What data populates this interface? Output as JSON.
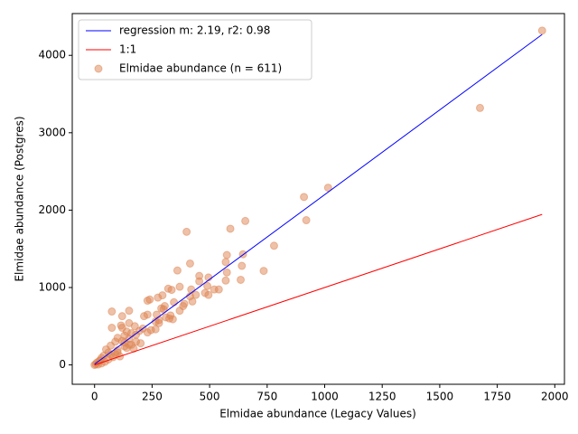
{
  "chart_data": {
    "type": "scatter",
    "xlabel": "Elmidae abundance (Legacy Values)",
    "ylabel": "Elmidae abundance (Postgres)",
    "xlim": [
      -97,
      2042
    ],
    "ylim": [
      -250,
      4540
    ],
    "xticks": [
      0,
      250,
      500,
      750,
      1000,
      1250,
      1500,
      1750,
      2000
    ],
    "yticks": [
      0,
      1000,
      2000,
      3000,
      4000
    ],
    "legend": "upper left",
    "series": [
      {
        "name": "regression m: 2.19, r2: 0.98",
        "type": "line",
        "color": "#0000ff",
        "x": [
          0,
          1945
        ],
        "values": [
          10,
          4270
        ]
      },
      {
        "name": "1:1",
        "type": "line",
        "color": "#ff0000",
        "x": [
          0,
          1945
        ],
        "values": [
          0,
          1945
        ]
      },
      {
        "name": "Elmidae abundance (n = 611)",
        "type": "scatter",
        "color": "#dd8452",
        "x": [
          1945,
          1675,
          1015,
          910,
          920,
          655,
          590,
          400,
          780,
          645,
          575,
          570,
          415,
          640,
          360,
          735,
          575,
          455,
          495,
          455,
          570,
          635,
          370,
          490,
          520,
          540,
          420,
          320,
          335,
          480,
          495,
          440,
          415,
          295,
          275,
          240,
          230,
          345,
          425,
          390,
          385,
          305,
          290,
          300,
          370,
          150,
          75,
          230,
          270,
          330,
          215,
          120,
          310,
          325,
          340,
          280,
          265,
          280,
          150,
          175,
          115,
          120,
          75,
          210,
          265,
          245,
          195,
          140,
          230,
          160,
          180,
          130,
          100,
          150,
          120,
          90,
          200,
          160,
          70,
          130,
          50,
          100,
          170,
          60,
          90,
          110,
          40,
          30,
          60,
          20,
          10,
          5,
          0,
          15,
          30,
          45,
          80,
          100,
          140,
          180,
          130,
          150,
          70,
          25
        ],
        "values": [
          4320,
          3320,
          2290,
          2170,
          1870,
          1860,
          1760,
          1720,
          1540,
          1430,
          1420,
          1330,
          1310,
          1280,
          1220,
          1215,
          1195,
          1150,
          1130,
          1080,
          1090,
          1100,
          1010,
          1020,
          975,
          975,
          975,
          985,
          970,
          930,
          905,
          905,
          885,
          900,
          870,
          845,
          830,
          810,
          820,
          790,
          760,
          760,
          730,
          720,
          700,
          700,
          690,
          650,
          650,
          640,
          630,
          630,
          615,
          600,
          590,
          580,
          560,
          540,
          540,
          500,
          510,
          480,
          480,
          470,
          460,
          450,
          440,
          430,
          420,
          410,
          390,
          380,
          350,
          340,
          310,
          300,
          280,
          260,
          250,
          240,
          200,
          190,
          210,
          160,
          140,
          110,
          120,
          90,
          70,
          50,
          30,
          10,
          0,
          5,
          20,
          40,
          100,
          160,
          220,
          300,
          290,
          260,
          130,
          60
        ]
      }
    ]
  }
}
